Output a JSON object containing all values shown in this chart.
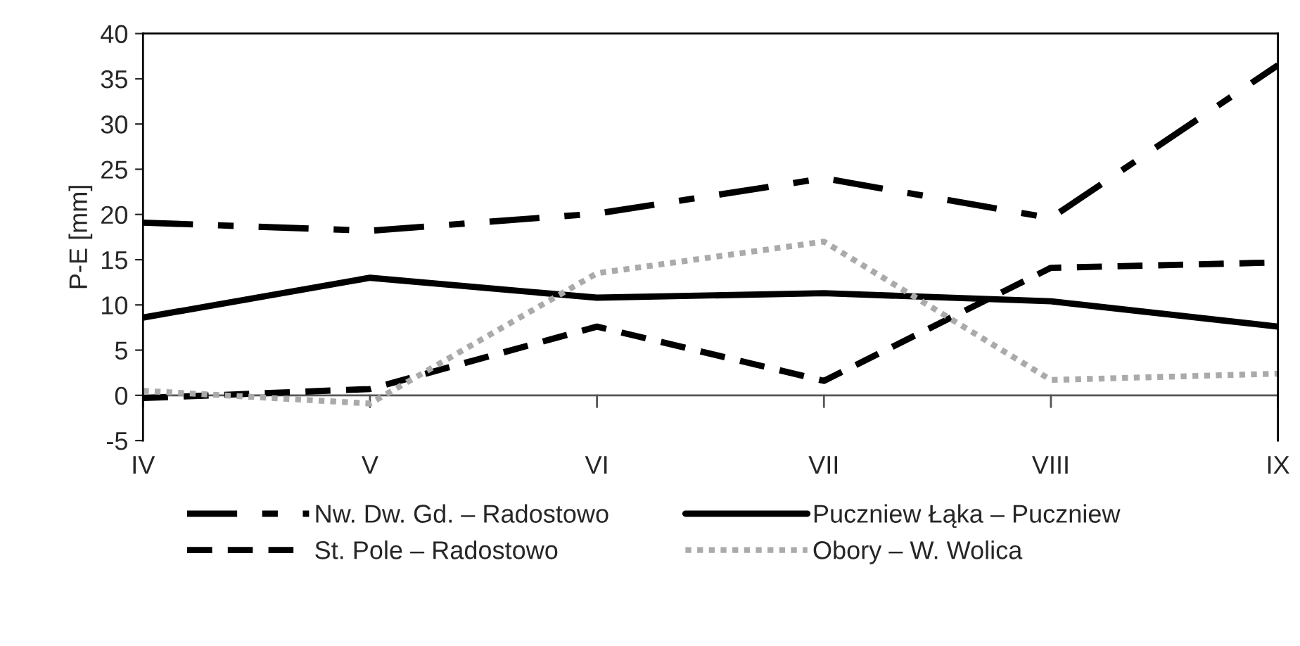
{
  "chart_data": {
    "type": "line",
    "ylabel": "P-E [mm]",
    "categories": [
      "IV",
      "V",
      "VI",
      "VII",
      "VIII",
      "IX"
    ],
    "ylim": [
      -5,
      40
    ],
    "yticks": [
      -5,
      0,
      5,
      10,
      15,
      20,
      25,
      30,
      35,
      40
    ],
    "grid": false,
    "legend": "bottom",
    "marker": "none",
    "series": [
      {
        "name": "Nw. Dw. Gd. – Radostowo",
        "color": "#000000",
        "line_style": "dashdot",
        "values": [
          19.1,
          18.2,
          20.1,
          24.0,
          19.6,
          36.5
        ]
      },
      {
        "name": "St. Pole – Radostowo",
        "color": "#000000",
        "line_style": "dashed",
        "values": [
          -0.3,
          0.7,
          7.6,
          1.6,
          14.1,
          14.7
        ]
      },
      {
        "name": "Puczniew Łąka – Puczniew",
        "color": "#000000",
        "line_style": "solid",
        "values": [
          8.6,
          13.0,
          10.8,
          11.3,
          10.4,
          7.6
        ]
      },
      {
        "name": "Obory – W. Wolica",
        "color": "#aaaaaa",
        "line_style": "dotted",
        "values": [
          0.5,
          -0.9,
          13.5,
          17.0,
          1.7,
          2.4
        ]
      }
    ]
  }
}
